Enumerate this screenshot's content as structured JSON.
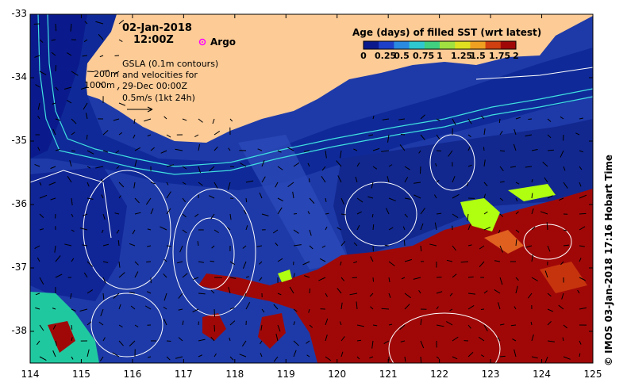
{
  "map": {
    "date": "02-Jan-2018",
    "time": "12:00Z",
    "argo_label": "Argo",
    "depth_labels": [
      "200m",
      "1000m"
    ],
    "gsla_text": [
      "GSLA (0.1m contours)",
      "and velocities for",
      "29-Dec 00:00Z",
      "0.5m/s (1kt 24h)"
    ],
    "colorbar_title": "Age (days) of filled SST (wrt latest)",
    "colorbar_ticks": [
      "0",
      "0.25",
      "0.5",
      "0.75",
      "1",
      "1.25",
      "1.5",
      "1.75",
      "2"
    ],
    "colorbar_colors": [
      "#0a1a8c",
      "#1e40c8",
      "#2a8ae0",
      "#30c8d0",
      "#40d080",
      "#a0e040",
      "#e0e020",
      "#f0a020",
      "#d04010",
      "#a00808"
    ],
    "credit": "© IMOS 03-Jan-2018 17:16 Hobart Time",
    "x_ticks": [
      "114",
      "115",
      "116",
      "117",
      "118",
      "119",
      "120",
      "121",
      "122",
      "123",
      "124",
      "125"
    ],
    "y_ticks": [
      "-33",
      "-34",
      "-35",
      "-36",
      "-37",
      "-38"
    ],
    "colors": {
      "land": "#fccb96",
      "ocean_deep": "#0a1a8c",
      "ocean_mid": "#1e3aa8",
      "old_sst": "#a00808",
      "argo": "#ff00ff",
      "shelf_contour": "#40e0e0"
    }
  }
}
